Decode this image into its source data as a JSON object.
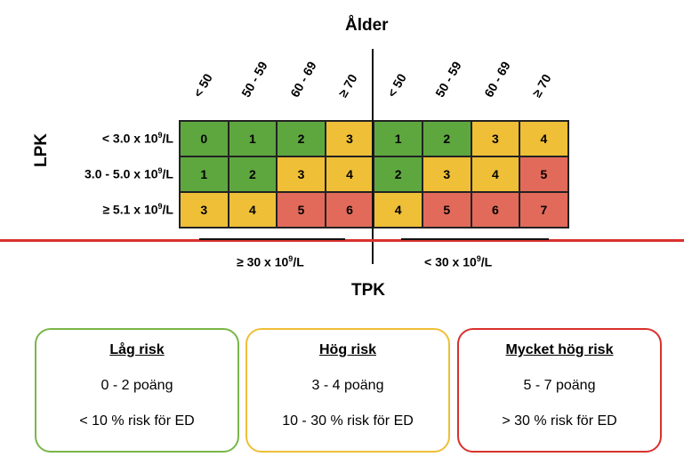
{
  "titles": {
    "age": "Ålder",
    "lpk": "LPK",
    "tpk": "TPK"
  },
  "age_labels": [
    "< 50",
    "50 - 59",
    "60 - 69",
    "≥ 70",
    "< 50",
    "50 - 59",
    "60 - 69",
    "≥ 70"
  ],
  "rows": [
    {
      "prefix": "< 3.0 x 10",
      "sup": "9",
      "suffix": "/L",
      "scores": [
        "0",
        "1",
        "2",
        "3",
        "1",
        "2",
        "3",
        "4"
      ]
    },
    {
      "prefix": "3.0 - 5.0 x 10",
      "sup": "9",
      "suffix": "/L",
      "scores": [
        "1",
        "2",
        "3",
        "4",
        "2",
        "3",
        "4",
        "5"
      ]
    },
    {
      "prefix": "≥ 5.1 x 10",
      "sup": "9",
      "suffix": "/L",
      "scores": [
        "3",
        "4",
        "5",
        "6",
        "4",
        "5",
        "6",
        "7"
      ]
    }
  ],
  "tpk_groups": {
    "left": {
      "prefix": "≥ 30 x 10",
      "sup": "9",
      "suffix": "/L"
    },
    "right": {
      "prefix": "< 30 x 10",
      "sup": "9",
      "suffix": "/L"
    }
  },
  "colors": {
    "green": "#5ea73f",
    "yellow": "#eebf37",
    "red": "#e26a5a",
    "divider": "#d9312d"
  },
  "risk_boxes": [
    {
      "title": "Låg risk",
      "points": "0 - 2 poäng",
      "risk": "< 10 % risk för ED",
      "border": "#7ab648"
    },
    {
      "title": "Hög risk",
      "points": "3 - 4 poäng",
      "risk": "10 - 30 % risk för ED",
      "border": "#eebf37"
    },
    {
      "title": "Mycket hög risk",
      "points": "5 - 7 poäng",
      "risk": "> 30 % risk för ED",
      "border": "#d9312d"
    }
  ]
}
